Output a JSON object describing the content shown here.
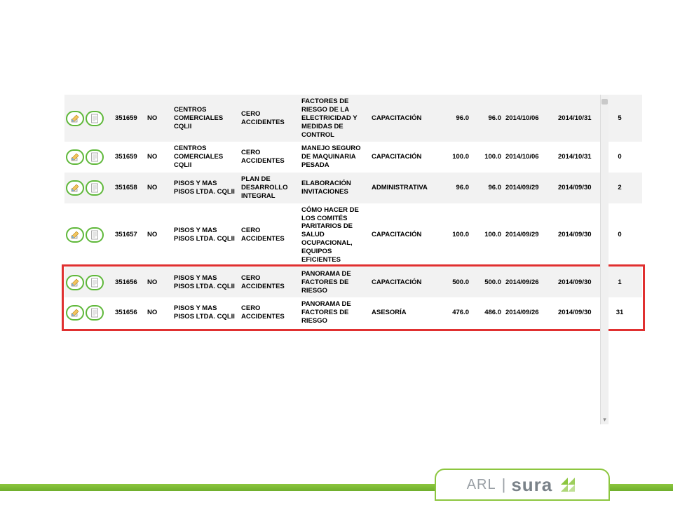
{
  "colors": {
    "row_even": "#f2f2f2",
    "row_odd": "#ffffff",
    "icon_border": "#5fb83a",
    "highlight": "#e03030",
    "footer_green": "#8cc63f",
    "text": "#000000"
  },
  "logo": {
    "arl": "ARL",
    "sura": "sura"
  },
  "columns": {
    "actions_w": 70,
    "id_w": 46,
    "no_w": 38,
    "empresa_w": 96,
    "prog_w": 86,
    "tema_w": 100,
    "tipo_w": 95,
    "v1_w": 48,
    "v2_w": 48,
    "d1_w": 75,
    "d2_w": 75,
    "n_w": 30
  },
  "highlight": {
    "top_row_index": 4,
    "row_count": 2
  },
  "rows": [
    {
      "id": "351659",
      "no": "NO",
      "empresa": "CENTROS COMERCIALES CQLII",
      "programa": "CERO ACCIDENTES",
      "tema": "FACTORES DE RIESGO DE LA ELECTRICIDAD Y MEDIDAS DE CONTROL",
      "tipo": "CAPACITACIÓN",
      "v1": "96.0",
      "v2": "96.0",
      "d1": "2014/10/06",
      "d2": "2014/10/31",
      "n": "5"
    },
    {
      "id": "351659",
      "no": "NO",
      "empresa": "CENTROS COMERCIALES CQLII",
      "programa": "CERO ACCIDENTES",
      "tema": "MANEJO SEGURO DE MAQUINARIA PESADA",
      "tipo": "CAPACITACIÓN",
      "v1": "100.0",
      "v2": "100.0",
      "d1": "2014/10/06",
      "d2": "2014/10/31",
      "n": "0"
    },
    {
      "id": "351658",
      "no": "NO",
      "empresa": "PISOS Y MAS PISOS LTDA. CQLII",
      "programa": "PLAN DE DESARROLLO INTEGRAL",
      "tema": "ELABORACIÓN INVITACIONES",
      "tipo": "ADMINISTRATIVA",
      "v1": "96.0",
      "v2": "96.0",
      "d1": "2014/09/29",
      "d2": "2014/09/30",
      "n": "2"
    },
    {
      "id": "351657",
      "no": "NO",
      "empresa": "PISOS Y MAS PISOS LTDA. CQLII",
      "programa": "CERO ACCIDENTES",
      "tema": "CÓMO HACER DE LOS COMITÉS PARITARIOS DE SALUD OCUPACIONAL, EQUIPOS EFICIENTES",
      "tipo": "CAPACITACIÓN",
      "v1": "100.0",
      "v2": "100.0",
      "d1": "2014/09/29",
      "d2": "2014/09/30",
      "n": "0"
    },
    {
      "id": "351656",
      "no": "NO",
      "empresa": "PISOS Y MAS PISOS LTDA. CQLII",
      "programa": "CERO ACCIDENTES",
      "tema": "PANORAMA DE FACTORES DE RIESGO",
      "tipo": "CAPACITACIÓN",
      "v1": "500.0",
      "v2": "500.0",
      "d1": "2014/09/26",
      "d2": "2014/09/30",
      "n": "1"
    },
    {
      "id": "351656",
      "no": "NO",
      "empresa": "PISOS Y MAS PISOS LTDA. CQLII",
      "programa": "CERO ACCIDENTES",
      "tema": "PANORAMA DE FACTORES DE RIESGO",
      "tipo": "ASESORÍA",
      "v1": "476.0",
      "v2": "486.0",
      "d1": "2014/09/26",
      "d2": "2014/09/30",
      "n": "31"
    }
  ]
}
